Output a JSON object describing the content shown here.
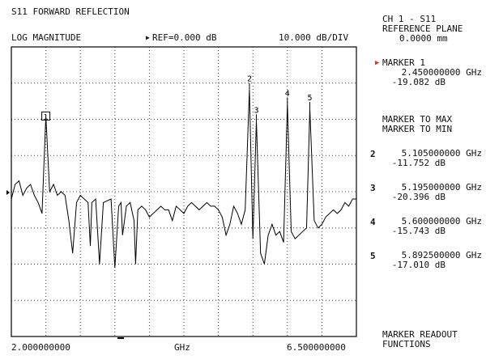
{
  "header": {
    "title": "S11 FORWARD REFLECTION",
    "format": "LOG MAGNITUDE",
    "ref": "REF=0.000 dB",
    "scale": "10.000 dB/DIV"
  },
  "xaxis": {
    "start": "2.000000000",
    "unit": "GHz",
    "stop": "6.500000000"
  },
  "panel": {
    "channel": "CH 1 - S11",
    "ref_plane_label": "REFERENCE PLANE",
    "ref_plane_value": "0.0000 mm",
    "active_marker": {
      "label": "MARKER 1",
      "freq": "2.450000000 GHz",
      "level": "-19.082 dB"
    },
    "marker_to_max": "MARKER TO MAX",
    "marker_to_min": "MARKER TO MIN",
    "markers": [
      {
        "num": "2",
        "freq": "5.105000000 GHz",
        "level": "-11.752 dB"
      },
      {
        "num": "3",
        "freq": "5.195000000 GHz",
        "level": "-20.396 dB"
      },
      {
        "num": "4",
        "freq": "5.600000000 GHz",
        "level": "-15.743 dB"
      },
      {
        "num": "5",
        "freq": "5.892500000 GHz",
        "level": "-17.010 dB"
      }
    ],
    "readout_functions_line1": "MARKER READOUT",
    "readout_functions_line2": "FUNCTIONS"
  },
  "chart_data": {
    "type": "line",
    "title": "S11 FORWARD REFLECTION",
    "xlabel": "GHz",
    "ylabel": "",
    "xlim": [
      2.0,
      6.5
    ],
    "ylim": [
      -80,
      0
    ],
    "grid": true,
    "series": [
      {
        "x": [
          2.0,
          2.05,
          2.1,
          2.15,
          2.2,
          2.25,
          2.3,
          2.35,
          2.4,
          2.45,
          2.5,
          2.55,
          2.6,
          2.65,
          2.7,
          2.75,
          2.8,
          2.85,
          2.9,
          2.95,
          3.0,
          3.03,
          3.05,
          3.1,
          3.15,
          3.2,
          3.3,
          3.35,
          3.4,
          3.43,
          3.45,
          3.5,
          3.55,
          3.6,
          3.62,
          3.65,
          3.7,
          3.75,
          3.8,
          3.85,
          3.9,
          3.95,
          4.0,
          4.05,
          4.1,
          4.15,
          4.2,
          4.25,
          4.3,
          4.35,
          4.4,
          4.45,
          4.5,
          4.55,
          4.6,
          4.65,
          4.7,
          4.75,
          4.8,
          4.85,
          4.9,
          4.95,
          5.0,
          5.05,
          5.105,
          5.15,
          5.195,
          5.25,
          5.3,
          5.35,
          5.4,
          5.45,
          5.5,
          5.55,
          5.6,
          5.65,
          5.7,
          5.75,
          5.8,
          5.85,
          5.8925,
          5.95,
          6.0,
          6.05,
          6.1,
          6.15,
          6.2,
          6.25,
          6.3,
          6.35,
          6.4,
          6.45,
          6.5
        ],
        "y": [
          -42,
          -38,
          -37,
          -41,
          -39,
          -38,
          -41,
          -43,
          -46,
          -19.08,
          -40,
          -38,
          -41,
          -40,
          -41,
          -48,
          -57,
          -43,
          -41,
          -42,
          -43,
          -55,
          -43,
          -42,
          -60,
          -43,
          -42,
          -61,
          -44,
          -43,
          -52,
          -44,
          -43,
          -48,
          -60,
          -45,
          -44,
          -45,
          -47,
          -46,
          -45,
          -44,
          -45,
          -45,
          -48,
          -44,
          -45,
          -46,
          -44,
          -43,
          -44,
          -45,
          -44,
          -43,
          -44,
          -44,
          -45,
          -47,
          -52,
          -49,
          -44,
          -46,
          -49,
          -45,
          -11.75,
          -53,
          -20.4,
          -57,
          -60,
          -52,
          -49,
          -52,
          -51,
          -54,
          -15.74,
          -51,
          -53,
          -52,
          -51,
          -50,
          -17.01,
          -48,
          -50,
          -49,
          -47,
          -46,
          -45,
          -46,
          -45,
          -43,
          -44,
          -42,
          -42
        ]
      }
    ]
  }
}
